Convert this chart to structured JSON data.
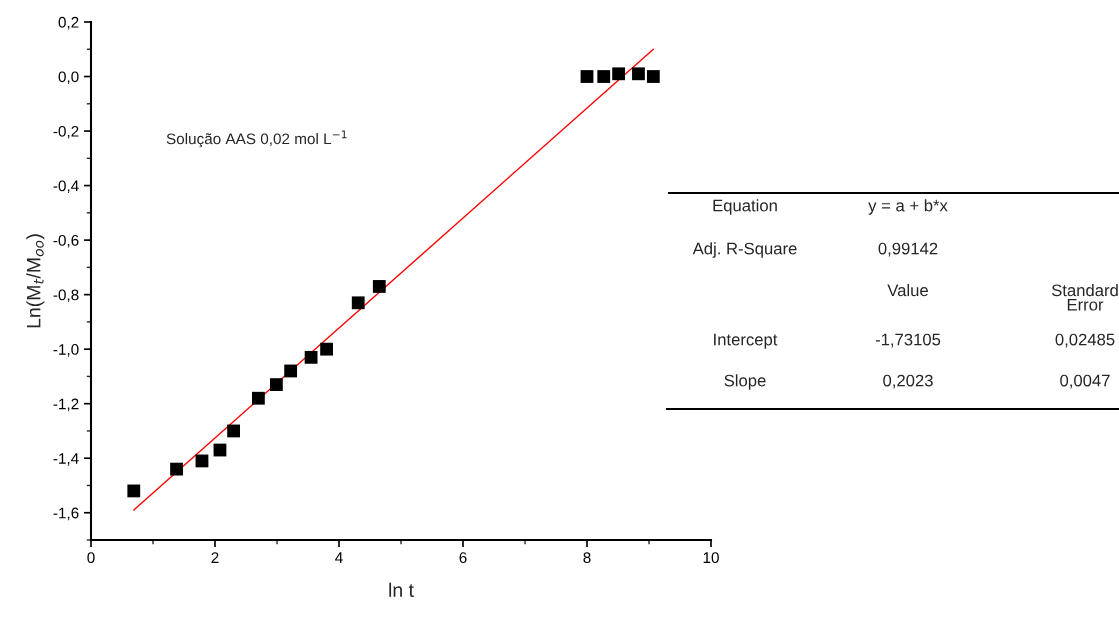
{
  "chart_data": {
    "type": "scatter",
    "xlabel": "ln t",
    "ylabel": "Ln(M$_{t}$/M$_{oo}$)",
    "grid": false,
    "legend": false,
    "xlim": [
      0,
      10
    ],
    "xticks": [
      0,
      2,
      4,
      6,
      8,
      10
    ],
    "ylim": [
      -1.7,
      0.2
    ],
    "yticks": [
      {
        "value": 0.2,
        "label": "0,2"
      },
      {
        "value": 0.0,
        "label": "0,0"
      },
      {
        "value": -0.2,
        "label": "-0,2"
      },
      {
        "value": -0.4,
        "label": "-0,4"
      },
      {
        "value": -0.6,
        "label": "-0,6"
      },
      {
        "value": -0.8,
        "label": "-0,8"
      },
      {
        "value": -1.0,
        "label": "-1,0"
      },
      {
        "value": -1.2,
        "label": "-1,2"
      },
      {
        "value": -1.4,
        "label": "-1,4"
      },
      {
        "value": -1.6,
        "label": "-1,6"
      }
    ],
    "series": [
      {
        "marker": "square",
        "color": "#000000",
        "x": [
          0.69,
          1.38,
          1.79,
          2.08,
          2.3,
          2.7,
          2.99,
          3.22,
          3.55,
          3.8,
          4.31,
          4.65,
          8.0,
          8.27,
          8.51,
          8.83,
          9.07
        ],
        "values": [
          -1.52,
          -1.44,
          -1.41,
          -1.37,
          -1.3,
          -1.18,
          -1.13,
          -1.08,
          -1.03,
          -1.0,
          -0.83,
          -0.77,
          0.0,
          0.0,
          0.01,
          0.01,
          0.0
        ]
      },
      {
        "type": "line",
        "color": "#ff0000",
        "x": [
          0.69,
          9.07
        ],
        "values": [
          -1.59,
          0.1
        ]
      }
    ],
    "annotations": [
      "Solução AAS 0,02 mol L$^{−1}$",
      "Equation",
      "y = a + b*x",
      "Adj. R-Square",
      "0,99142",
      "Value",
      "Standard\nError",
      "Intercept",
      "-1,73105",
      "0,02485",
      "Slope",
      "0,2023",
      "0,0047"
    ]
  }
}
